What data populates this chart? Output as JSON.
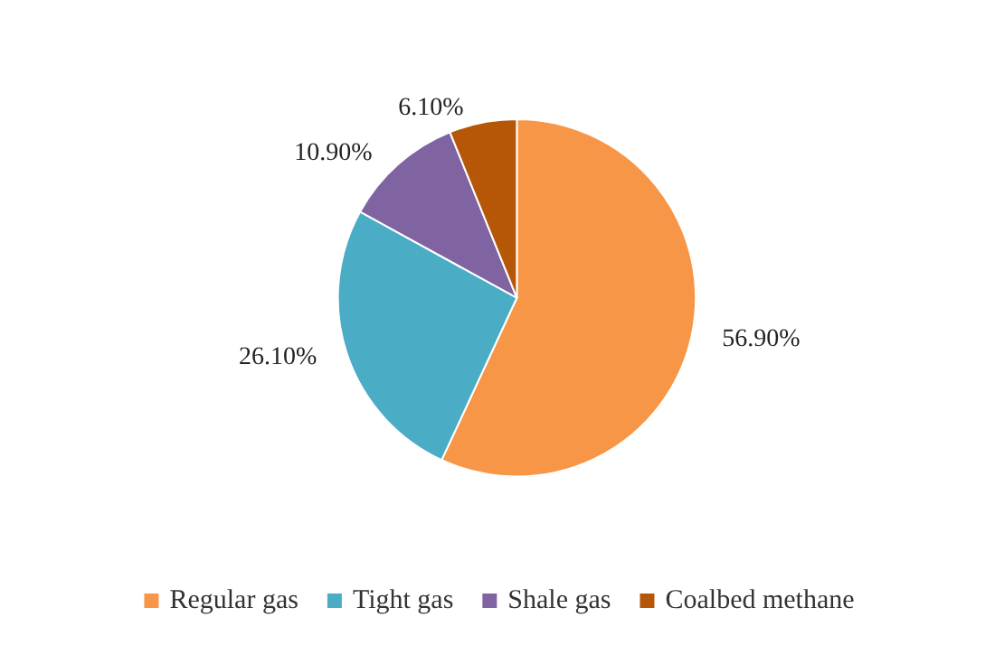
{
  "chart_data": {
    "type": "pie",
    "categories": [
      "Regular gas",
      "Tight gas",
      "Shale gas",
      "Coalbed methane"
    ],
    "values": [
      56.9,
      26.1,
      10.9,
      6.1
    ],
    "colors": [
      "#f79646",
      "#4bacc6",
      "#8064a2",
      "#b65708"
    ],
    "value_labels": [
      "56.90%",
      "26.10%",
      "10.90%",
      "6.10%"
    ],
    "legend": "bottom"
  }
}
